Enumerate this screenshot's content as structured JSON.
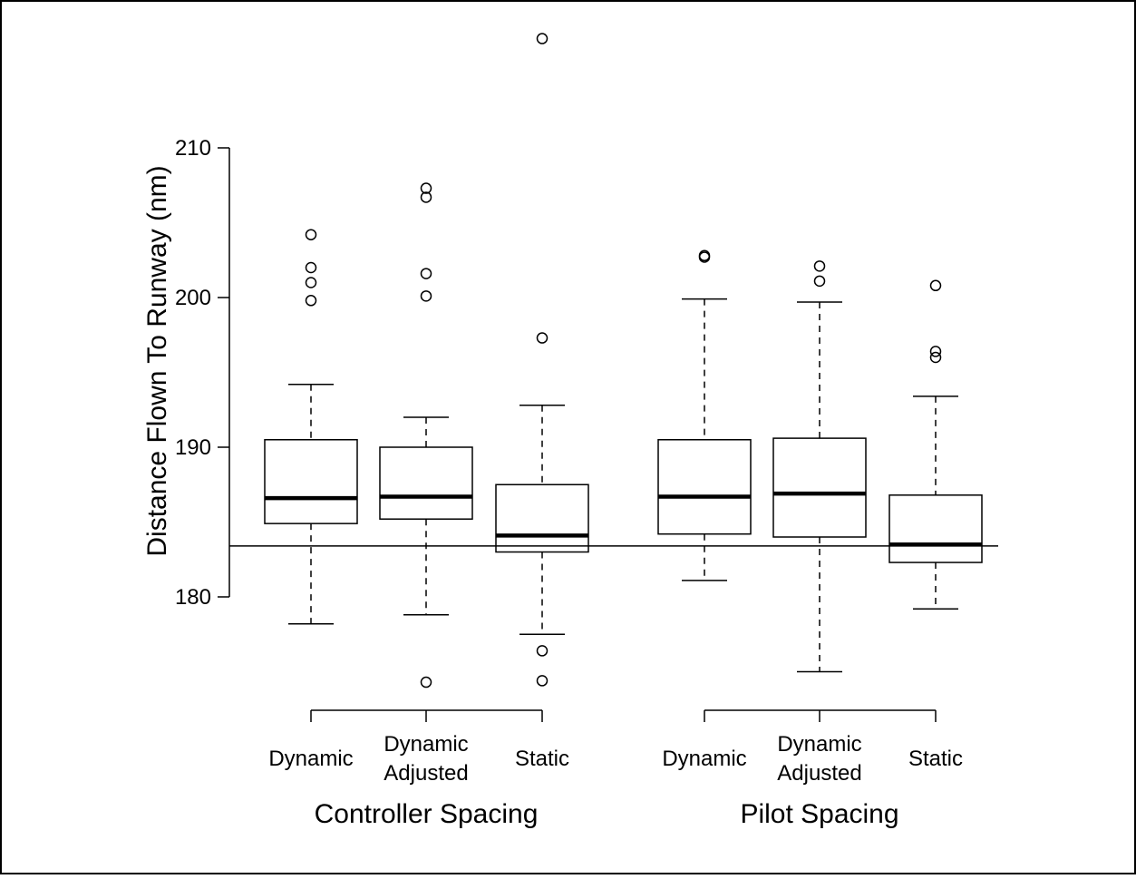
{
  "chart_data": {
    "type": "box",
    "title": "",
    "ylabel": "Distance Flown To Runway (nm)",
    "xlabel": "",
    "ylim": [
      173,
      218
    ],
    "yticks": [
      "180",
      "190",
      "200",
      "210"
    ],
    "reference_line": 183.4,
    "grid": false,
    "groups": [
      {
        "label": "Controller Spacing",
        "members": [
          0,
          1,
          2
        ]
      },
      {
        "label": "Pilot Spacing",
        "members": [
          3,
          4,
          5
        ]
      }
    ],
    "boxes": [
      {
        "label_lines": [
          "Dynamic"
        ],
        "q1": 184.9,
        "median": 186.6,
        "q3": 190.5,
        "whisker_low": 178.2,
        "whisker_high": 194.2,
        "outliers": [
          199.8,
          201.0,
          202.0,
          204.2
        ]
      },
      {
        "label_lines": [
          "Dynamic",
          "Adjusted"
        ],
        "q1": 185.2,
        "median": 186.7,
        "q3": 190.0,
        "whisker_low": 178.8,
        "whisker_high": 192.0,
        "outliers": [
          174.3,
          200.1,
          201.6,
          206.7,
          207.3
        ]
      },
      {
        "label_lines": [
          "Static"
        ],
        "q1": 183.0,
        "median": 184.1,
        "q3": 187.5,
        "whisker_low": 177.5,
        "whisker_high": 192.8,
        "outliers": [
          174.4,
          176.4,
          197.3,
          217.3
        ]
      },
      {
        "label_lines": [
          "Dynamic"
        ],
        "q1": 184.2,
        "median": 186.7,
        "q3": 190.5,
        "whisker_low": 181.1,
        "whisker_high": 199.9,
        "outliers": [
          202.7,
          202.8
        ]
      },
      {
        "label_lines": [
          "Dynamic",
          "Adjusted"
        ],
        "q1": 184.0,
        "median": 186.9,
        "q3": 190.6,
        "whisker_low": 175.0,
        "whisker_high": 199.7,
        "outliers": [
          201.1,
          202.1
        ]
      },
      {
        "label_lines": [
          "Static"
        ],
        "q1": 182.3,
        "median": 183.5,
        "q3": 186.8,
        "whisker_low": 179.2,
        "whisker_high": 193.4,
        "outliers": [
          196.0,
          196.4,
          200.8
        ]
      }
    ]
  }
}
